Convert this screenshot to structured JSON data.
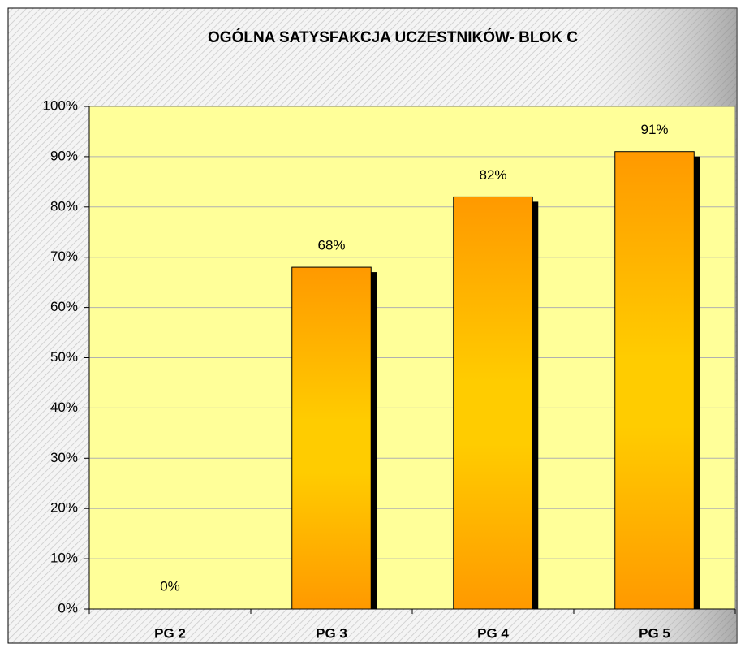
{
  "chart_data": {
    "type": "bar",
    "title": "OGÓLNA SATYSFAKCJA UCZESTNIKÓW- BLOK C",
    "categories": [
      "PG 2",
      "PG 3",
      "PG 4",
      "PG 5"
    ],
    "values": [
      0,
      68,
      82,
      91
    ],
    "value_labels": [
      "0%",
      "68%",
      "82%",
      "91%"
    ],
    "color": "#ff9900",
    "plot_background": "#ffff99",
    "ylim": [
      0,
      100
    ],
    "yticks": [
      {
        "value": 0,
        "label": "0%"
      },
      {
        "value": 10,
        "label": "10%"
      },
      {
        "value": 20,
        "label": "20%"
      },
      {
        "value": 30,
        "label": "30%"
      },
      {
        "value": 40,
        "label": "40%"
      },
      {
        "value": 50,
        "label": "50%"
      },
      {
        "value": 60,
        "label": "60%"
      },
      {
        "value": 70,
        "label": "70%"
      },
      {
        "value": 80,
        "label": "80%"
      },
      {
        "value": 90,
        "label": "90%"
      },
      {
        "value": 100,
        "label": "100%"
      }
    ],
    "grid": true
  }
}
